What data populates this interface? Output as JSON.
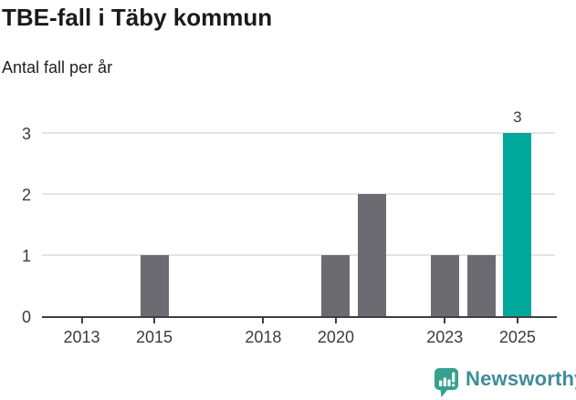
{
  "header": {
    "title": "TBE-fall i Täby kommun",
    "subtitle": "Antal fall per år"
  },
  "chart_data": {
    "type": "bar",
    "title": "TBE-fall i Täby kommun",
    "subtitle": "Antal fall per år",
    "categories": [
      2013,
      2014,
      2015,
      2016,
      2017,
      2018,
      2019,
      2020,
      2021,
      2022,
      2023,
      2024,
      2025
    ],
    "values": [
      0,
      0,
      1,
      0,
      0,
      0,
      0,
      1,
      2,
      0,
      1,
      1,
      3
    ],
    "xlabel": "",
    "ylabel": "Antal fall per år",
    "ylim": [
      0,
      3
    ],
    "y_ticks": [
      0,
      1,
      2,
      3
    ],
    "x_tick_years": [
      2013,
      2015,
      2018,
      2020,
      2023,
      2025
    ],
    "grid": "horizontal",
    "legend": "none",
    "highlight_year": 2025,
    "data_labels": [
      {
        "year": 2025,
        "value": 3,
        "text": "3"
      }
    ],
    "colors": {
      "bar": "#6c6b72",
      "highlight_bar": "#00a79b",
      "gridline": "#e4e4e4",
      "axis": "#3f3f3f",
      "tick_text": "#3c3c3c",
      "data_label_text": "#3a3a3a"
    }
  },
  "footer": {
    "brand": "Newsworthy",
    "brand_color": "#3e8e99",
    "icon_color": "#36a18e"
  }
}
